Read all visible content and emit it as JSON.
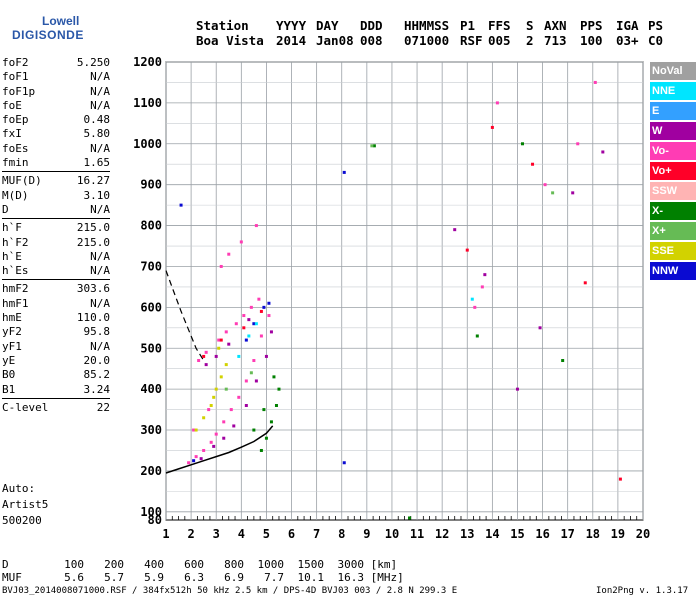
{
  "logo": {
    "line1": "Lowell",
    "line2": "DIGISONDE"
  },
  "header": {
    "columns": [
      {
        "top": "Station",
        "bottom": "Boa Vista"
      },
      {
        "top": "YYYY",
        "bottom": "2014"
      },
      {
        "top": "DAY",
        "bottom": "Jan08"
      },
      {
        "top": "DDD",
        "bottom": "008"
      },
      {
        "top": "HHMMSS",
        "bottom": "071000"
      },
      {
        "top": "P1",
        "bottom": "RSF"
      },
      {
        "top": "FFS",
        "bottom": "005"
      },
      {
        "top": "S",
        "bottom": "2"
      },
      {
        "top": "AXN",
        "bottom": "713"
      },
      {
        "top": "PPS",
        "bottom": "100"
      },
      {
        "top": "IGA",
        "bottom": "03+"
      },
      {
        "top": "PS",
        "bottom": "C0"
      }
    ]
  },
  "params": [
    [
      {
        "label": "foF2",
        "value": "5.250"
      },
      {
        "label": "foF1",
        "value": "N/A"
      },
      {
        "label": "foF1p",
        "value": "N/A"
      },
      {
        "label": "foE",
        "value": "N/A"
      },
      {
        "label": "foEp",
        "value": "0.48"
      },
      {
        "label": "fxI",
        "value": "5.80"
      },
      {
        "label": "foEs",
        "value": "N/A"
      },
      {
        "label": "fmin",
        "value": "1.65"
      }
    ],
    [
      {
        "label": "MUF(D)",
        "value": "16.27"
      },
      {
        "label": "M(D)",
        "value": "3.10"
      },
      {
        "label": "D",
        "value": "N/A"
      }
    ],
    [
      {
        "label": "h`F",
        "value": "215.0"
      },
      {
        "label": "h`F2",
        "value": "215.0"
      },
      {
        "label": "h`E",
        "value": "N/A"
      },
      {
        "label": "h`Es",
        "value": "N/A"
      }
    ],
    [
      {
        "label": "hmF2",
        "value": "303.6"
      },
      {
        "label": "hmF1",
        "value": "N/A"
      },
      {
        "label": "hmE",
        "value": "110.0"
      },
      {
        "label": "yF2",
        "value": "95.8"
      },
      {
        "label": "yF1",
        "value": "N/A"
      },
      {
        "label": "yE",
        "value": "20.0"
      },
      {
        "label": "B0",
        "value": "85.2"
      },
      {
        "label": "B1",
        "value": "3.24"
      }
    ],
    [
      {
        "label": "C-level",
        "value": "22"
      }
    ]
  ],
  "auto": {
    "line1": "Auto:",
    "line2": "Artist5",
    "line3": "500200"
  },
  "legend": [
    {
      "label": "NoVal",
      "color": "#a0a0a0"
    },
    {
      "label": "NNE",
      "color": "#00e5ff"
    },
    {
      "label": "E",
      "color": "#33a0ff"
    },
    {
      "label": "W",
      "color": "#a000a0"
    },
    {
      "label": "Vo-",
      "color": "#ff3cb4"
    },
    {
      "label": "Vo+",
      "color": "#ff0028"
    },
    {
      "label": "SSW",
      "color": "#ffb4b4"
    },
    {
      "label": "X-",
      "color": "#008000"
    },
    {
      "label": "X+",
      "color": "#66bb55"
    },
    {
      "label": "SSE",
      "color": "#d2d200"
    },
    {
      "label": "NNW",
      "color": "#0a0ad2"
    }
  ],
  "chart_data": {
    "type": "scatter",
    "title": "",
    "xlabel": "",
    "ylabel": "",
    "xlim": [
      1,
      20
    ],
    "ylim": [
      80,
      1200
    ],
    "x_ticks": [
      1,
      2,
      3,
      4,
      5,
      6,
      7,
      8,
      9,
      10,
      11,
      12,
      13,
      14,
      15,
      16,
      17,
      18,
      19,
      20
    ],
    "y_ticks": [
      80,
      100,
      200,
      300,
      400,
      500,
      600,
      700,
      800,
      900,
      1000,
      1100,
      1200
    ],
    "grid": true,
    "series": [
      {
        "name": "Vo-",
        "color": "#ff3cb4",
        "x": [
          1.9,
          2.2,
          2.5,
          2.8,
          3.0,
          3.3,
          3.6,
          3.9,
          4.2,
          4.5,
          4.8,
          5.1,
          2.3,
          2.6,
          3.1,
          3.4,
          3.8,
          4.1,
          4.4,
          4.7,
          3.2,
          3.5,
          4.0,
          4.6,
          2.1,
          2.7,
          13.3,
          13.6,
          14.2,
          16.1,
          17.4,
          18.1
        ],
        "y": [
          220,
          235,
          250,
          270,
          290,
          320,
          350,
          380,
          420,
          470,
          530,
          580,
          470,
          490,
          520,
          540,
          560,
          580,
          600,
          620,
          700,
          730,
          760,
          800,
          300,
          350,
          600,
          650,
          1100,
          900,
          1000,
          1150
        ]
      },
      {
        "name": "W",
        "color": "#a000a0",
        "x": [
          2.4,
          2.9,
          3.3,
          3.7,
          4.2,
          4.6,
          5.0,
          5.2,
          2.6,
          3.0,
          3.5,
          4.3,
          12.5,
          13.7,
          15.0,
          15.9,
          17.2,
          18.4
        ],
        "y": [
          230,
          260,
          280,
          310,
          360,
          420,
          480,
          540,
          460,
          480,
          510,
          570,
          790,
          680,
          400,
          550,
          880,
          980
        ]
      },
      {
        "name": "X-",
        "color": "#008000",
        "x": [
          4.8,
          5.0,
          5.2,
          5.4,
          5.5,
          4.5,
          4.9,
          5.3,
          9.3,
          10.7,
          13.4,
          15.2,
          16.8
        ],
        "y": [
          250,
          280,
          320,
          360,
          400,
          300,
          350,
          430,
          995,
          85,
          530,
          1000,
          470
        ]
      },
      {
        "name": "Vo+",
        "color": "#ff0028",
        "x": [
          2.5,
          3.2,
          4.1,
          4.8,
          13.0,
          14.0,
          15.6,
          17.7,
          19.1
        ],
        "y": [
          480,
          520,
          550,
          590,
          740,
          1040,
          950,
          660,
          180
        ]
      },
      {
        "name": "SSE",
        "color": "#d2d200",
        "x": [
          2.2,
          2.5,
          2.8,
          3.0,
          3.2,
          3.4,
          2.9,
          3.1
        ],
        "y": [
          300,
          330,
          360,
          400,
          430,
          460,
          380,
          500
        ]
      },
      {
        "name": "NNW",
        "color": "#0a0ad2",
        "x": [
          1.6,
          2.1,
          4.2,
          4.9,
          8.1,
          8.1,
          4.5,
          5.1
        ],
        "y": [
          850,
          225,
          520,
          600,
          930,
          220,
          560,
          610
        ]
      },
      {
        "name": "NNE",
        "color": "#00e5ff",
        "x": [
          3.9,
          4.3,
          4.6,
          13.2
        ],
        "y": [
          480,
          530,
          560,
          620
        ]
      },
      {
        "name": "X+",
        "color": "#66bb55",
        "x": [
          3.4,
          4.4,
          9.2,
          16.4
        ],
        "y": [
          400,
          440,
          995,
          880
        ]
      }
    ],
    "trace_curve": {
      "x": [
        1.0,
        1.5,
        2.0,
        2.5,
        3.0,
        3.5,
        4.0,
        4.5,
        5.0,
        5.25
      ],
      "y": [
        195,
        205,
        215,
        225,
        235,
        245,
        258,
        272,
        292,
        310
      ]
    },
    "dashed_curve": {
      "x": [
        1.0,
        1.3,
        1.6,
        1.9,
        2.2,
        2.5
      ],
      "y": [
        690,
        640,
        590,
        545,
        500,
        470
      ]
    }
  },
  "bottom": {
    "d_label": "D",
    "d_values": [
      "100",
      "200",
      "400",
      "600",
      "800",
      "1000",
      "1500",
      "3000"
    ],
    "d_unit": "[km]",
    "muf_label": "MUF",
    "muf_values": [
      "5.6",
      "5.7",
      "5.9",
      "6.3",
      "6.9",
      "7.7",
      "10.1",
      "16.3"
    ],
    "muf_unit": "[MHz]"
  },
  "footer": "BVJ03_2014008071000.RSF / 384fx512h 50 kHz 2.5 km / DPS-4D BVJ03 003 / 2.8 N 299.3 E",
  "version": "Ion2Png v. 1.3.17"
}
